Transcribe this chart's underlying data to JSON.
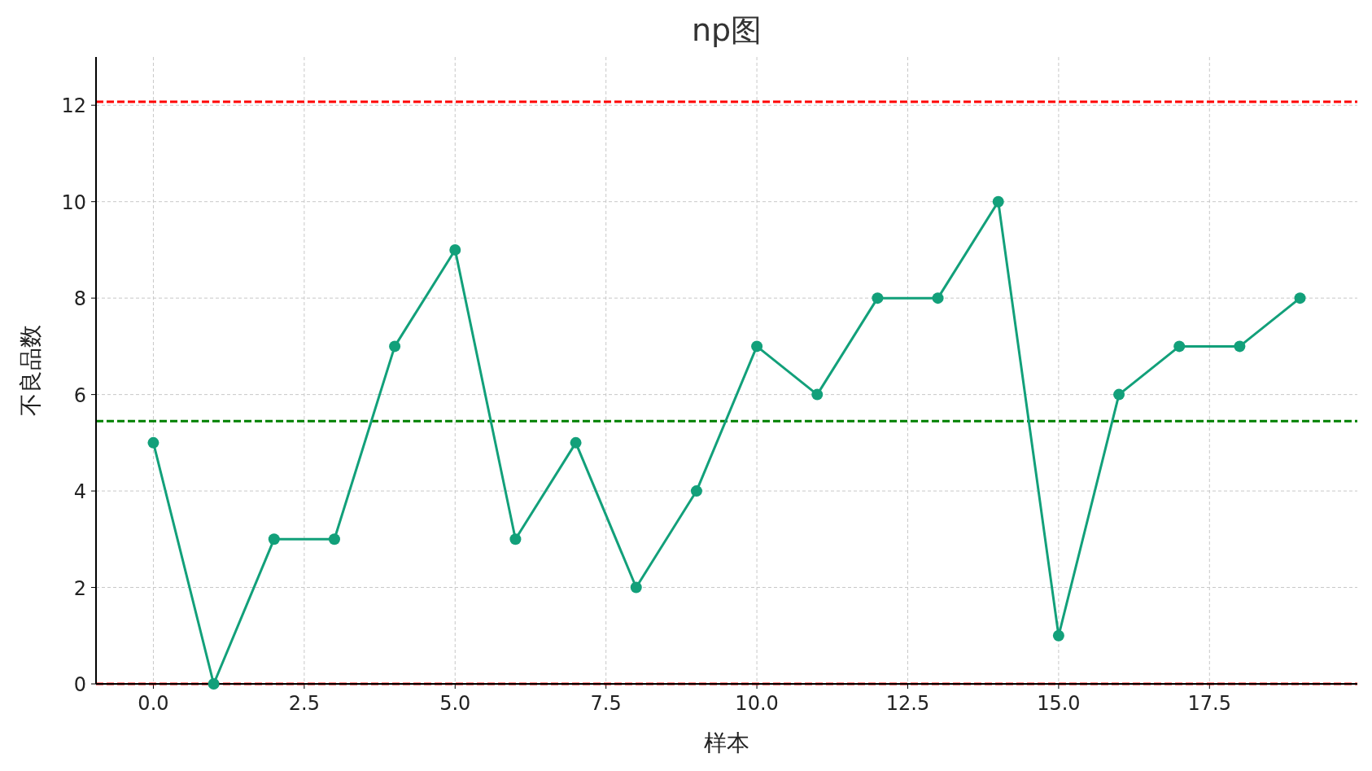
{
  "chart_data": {
    "type": "line",
    "title": "np图",
    "xlabel": "样本",
    "ylabel": "不良品数",
    "x": [
      0,
      1,
      2,
      3,
      4,
      5,
      6,
      7,
      8,
      9,
      10,
      11,
      12,
      13,
      14,
      15,
      16,
      17,
      18,
      19
    ],
    "series": [
      {
        "color": "#12a07a",
        "values": [
          5,
          0,
          3,
          3,
          7,
          9,
          3,
          5,
          2,
          4,
          7,
          6,
          8,
          8,
          10,
          1,
          6,
          7,
          7,
          8
        ]
      }
    ],
    "marker": "circle",
    "line_style": "solid",
    "grid": true,
    "xlim": [
      -0.95,
      19.95
    ],
    "ylim": [
      0,
      13
    ],
    "xticks": [
      {
        "value": 0,
        "label": "0.0"
      },
      {
        "value": 2.5,
        "label": "2.5"
      },
      {
        "value": 5,
        "label": "5.0"
      },
      {
        "value": 7.5,
        "label": "7.5"
      },
      {
        "value": 10,
        "label": "10.0"
      },
      {
        "value": 12.5,
        "label": "12.5"
      },
      {
        "value": 15,
        "label": "15.0"
      },
      {
        "value": 17.5,
        "label": "17.5"
      }
    ],
    "yticks": [
      0,
      2,
      4,
      6,
      8,
      10,
      12
    ],
    "ref_lines": [
      {
        "axis": "y",
        "value": 12.07,
        "color": "#ff0000",
        "line_style": "dashed"
      },
      {
        "axis": "y",
        "value": 5.45,
        "color": "#008000",
        "line_style": "dashed"
      },
      {
        "axis": "y",
        "value": 0,
        "color": "#ff0000",
        "line_style": "dashed"
      }
    ]
  }
}
